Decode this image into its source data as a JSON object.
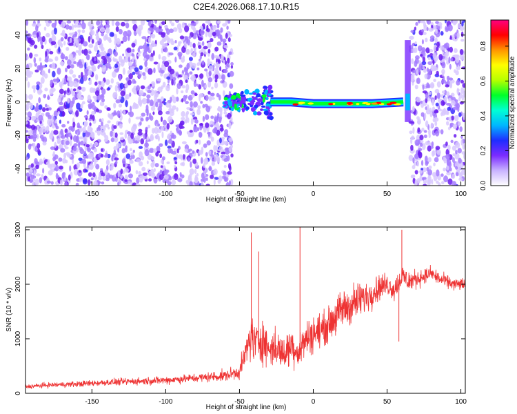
{
  "figure": {
    "title": "C2E4.2026.068.17.10.R15"
  },
  "chart_data": [
    {
      "type": "heatmap",
      "xlabel": "Height of straight line (km)",
      "ylabel": "Frequency (Hz)",
      "xlim": [
        -195,
        103
      ],
      "ylim": [
        -50,
        49
      ],
      "xticks": [
        -150,
        -100,
        -50,
        0,
        50,
        100
      ],
      "yticks": [
        -40,
        -20,
        0,
        20,
        40
      ],
      "colorbar": {
        "label": "Normalized spectral amplitude",
        "range": [
          0,
          0.95
        ],
        "ticks": [
          0.0,
          0.2,
          0.4,
          0.6,
          0.8
        ],
        "colors": [
          "#ffffff",
          "#c9b3ff",
          "#7b2cff",
          "#1f2dff",
          "#00b7ff",
          "#00ffd5",
          "#00ff2a",
          "#b6ff00",
          "#ffff00",
          "#ff9500",
          "#ff0000",
          "#ff0080"
        ]
      },
      "regions": [
        {
          "name": "noise",
          "x": [
            -195,
            -55
          ],
          "y": [
            -50,
            49
          ],
          "level": 0.12
        },
        {
          "name": "noise",
          "x": [
            66,
            103
          ],
          "y": [
            -50,
            49
          ],
          "level": 0.12
        },
        {
          "name": "signal",
          "x": [
            -29,
            61
          ],
          "y": [
            -2,
            2
          ],
          "level": 0.85
        },
        {
          "name": "signal-onset",
          "x": [
            -60,
            -28
          ],
          "y": [
            -10,
            10
          ],
          "level": 0.25
        },
        {
          "name": "vertical-feature",
          "x": [
            62,
            66
          ],
          "y": [
            -12,
            37
          ],
          "level": 0.4
        }
      ],
      "signal_track": [
        {
          "x": -29,
          "y": 0
        },
        {
          "x": -15,
          "y": 0
        },
        {
          "x": 0,
          "y": -1
        },
        {
          "x": 20,
          "y": -1
        },
        {
          "x": 40,
          "y": -1
        },
        {
          "x": 61,
          "y": 0
        }
      ]
    },
    {
      "type": "line",
      "xlabel": "Height of straight line (km)",
      "ylabel": "SNR (10 * v/v)",
      "xlim": [
        -195,
        103
      ],
      "ylim": [
        0,
        3050
      ],
      "xticks": [
        -150,
        -100,
        -50,
        0,
        50,
        100
      ],
      "yticks": [
        0,
        1000,
        2000,
        3000
      ],
      "color": "#ee3333",
      "series": [
        {
          "x": [
            -195,
            -180,
            -160,
            -140,
            -120,
            -100,
            -80,
            -60,
            -50,
            -45,
            -42,
            -40,
            -35,
            -30,
            -25,
            -20,
            -15,
            -10,
            -5,
            0,
            5,
            10,
            15,
            20,
            25,
            30,
            35,
            40,
            45,
            50,
            55,
            60,
            65,
            70,
            75,
            80,
            85,
            90,
            95,
            103
          ],
          "y": [
            120,
            150,
            170,
            200,
            220,
            240,
            280,
            320,
            400,
            800,
            1100,
            900,
            1000,
            800,
            850,
            700,
            900,
            750,
            1000,
            1100,
            1150,
            1250,
            1400,
            1550,
            1600,
            1700,
            1750,
            1850,
            1950,
            2000,
            1900,
            2150,
            2050,
            2100,
            2150,
            2200,
            2100,
            2050,
            2000,
            2000
          ],
          "spread": [
            60,
            70,
            80,
            90,
            100,
            110,
            120,
            150,
            200,
            450,
            700,
            550,
            600,
            500,
            500,
            450,
            550,
            450,
            500,
            500,
            450,
            450,
            500,
            550,
            550,
            500,
            450,
            400,
            350,
            300,
            300,
            350,
            300,
            250,
            200,
            200,
            200,
            180,
            170,
            170
          ]
        }
      ],
      "spikes": [
        {
          "x": -42,
          "y": 2950
        },
        {
          "x": -37,
          "y": 2600
        },
        {
          "x": -9,
          "y": 3050
        },
        {
          "x": 60,
          "y": 3000
        },
        {
          "x": 58,
          "y": 950
        }
      ]
    }
  ]
}
